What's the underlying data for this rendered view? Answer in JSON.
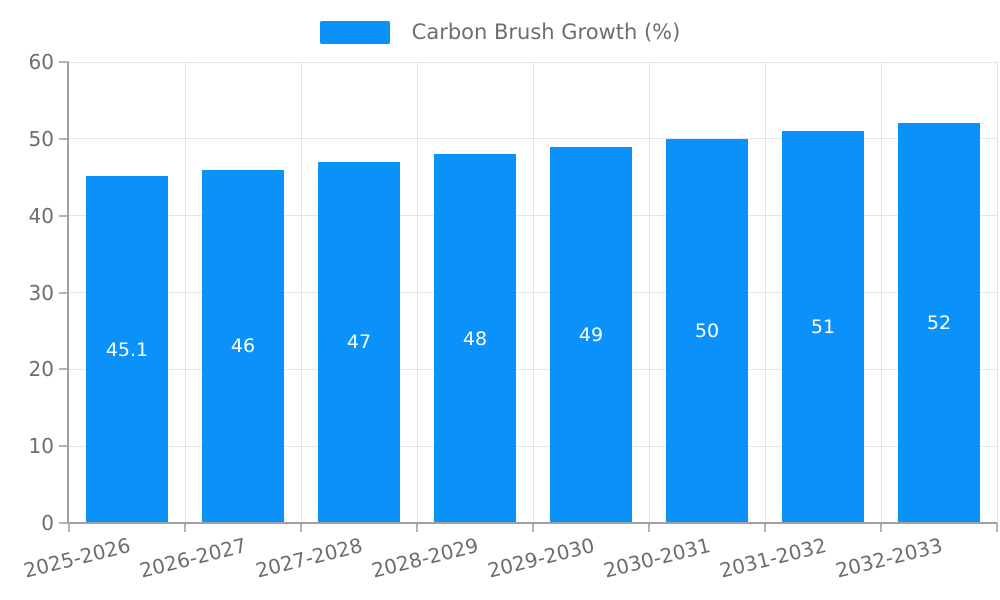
{
  "chart_data": {
    "type": "bar",
    "title": "",
    "legend": "Carbon Brush Growth (%)",
    "legend_position": "top-center",
    "categories": [
      "2025-2026",
      "2026-2027",
      "2027-2028",
      "2028-2029",
      "2029-2030",
      "2030-2031",
      "2031-2032",
      "2032-2033"
    ],
    "values": [
      45.1,
      46,
      47,
      48,
      49,
      50,
      51,
      52
    ],
    "xlabel": "",
    "ylabel": "",
    "ylim": [
      0,
      60
    ],
    "yticks": [
      0,
      10,
      20,
      30,
      40,
      50,
      60
    ],
    "grid": true,
    "colors": {
      "bar": "#0a91fa",
      "bar_label": "#ffffff",
      "grid": "#e5e5e5",
      "axis": "#a0a0a0",
      "tick": "#b3b3b3",
      "text": "#6e6e6e",
      "background": "#ffffff"
    }
  }
}
